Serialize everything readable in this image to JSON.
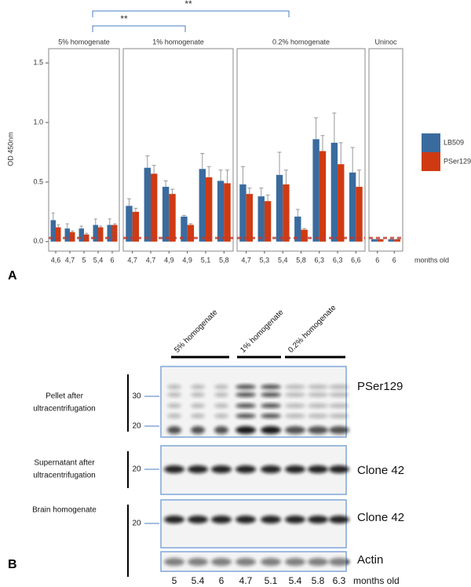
{
  "chart_data": {
    "type": "bar",
    "ylabel": "OD 450nm",
    "xlabel": "months old",
    "ylim": [
      -0.08,
      1.62
    ],
    "yticks": [
      {
        "value": 0,
        "label": "0.0"
      },
      {
        "value": 0.5,
        "label": "0.5"
      },
      {
        "value": 1,
        "label": "1.0"
      },
      {
        "value": 1.5,
        "label": "1.5"
      }
    ],
    "baseline": 0.03,
    "legend": [
      {
        "name": "LB509",
        "color": "#3a6b9e"
      },
      {
        "name": "PSer129",
        "color": "#d03a12"
      }
    ],
    "annotations": [
      "**",
      "**"
    ],
    "facets": [
      {
        "title": "5% homogenate",
        "categories": [
          "4,6",
          "4,7",
          "5",
          "5,4",
          "6"
        ],
        "series": [
          {
            "values": [
              0.18,
              0.11,
              0.11,
              0.14,
              0.14
            ],
            "errors": [
              0.06,
              0.04,
              0.02,
              0.05,
              0.05
            ]
          },
          {
            "values": [
              0.12,
              0.08,
              0.06,
              0.12,
              0.14
            ],
            "errors": [
              0.02,
              0.01,
              0.01,
              0.01,
              0.01
            ]
          }
        ]
      },
      {
        "title": "1% homogenate",
        "categories": [
          "4,7",
          "4,7",
          "4,9",
          "4,9",
          "5,1",
          "5,8"
        ],
        "series": [
          {
            "values": [
              0.3,
              0.62,
              0.46,
              0.21,
              0.61,
              0.51
            ],
            "errors": [
              0.06,
              0.1,
              0.05,
              0.01,
              0.13,
              0.09
            ]
          },
          {
            "values": [
              0.25,
              0.57,
              0.4,
              0.14,
              0.54,
              0.49
            ],
            "errors": [
              0.03,
              0.07,
              0.04,
              0.01,
              0.09,
              0.11
            ]
          }
        ]
      },
      {
        "title": "0.2% homogenate",
        "categories": [
          "4,7",
          "5,3",
          "5,4",
          "5,8",
          "6,3",
          "6,3",
          "6,6"
        ],
        "series": [
          {
            "values": [
              0.48,
              0.38,
              0.56,
              0.21,
              0.86,
              0.83,
              0.58
            ],
            "errors": [
              0.15,
              0.07,
              0.19,
              0.06,
              0.18,
              0.25,
              0.21
            ]
          },
          {
            "values": [
              0.4,
              0.34,
              0.48,
              0.1,
              0.76,
              0.65,
              0.46
            ],
            "errors": [
              0.05,
              0.05,
              0.12,
              0.01,
              0.13,
              0.18,
              0.14
            ]
          }
        ]
      },
      {
        "title": "Uninoc",
        "categories": [
          "6",
          "6"
        ],
        "series": [
          {
            "values": [
              0.02,
              0.02
            ],
            "errors": [
              0,
              0
            ]
          },
          {
            "values": [
              0.02,
              0.02
            ],
            "errors": [
              0,
              0
            ]
          }
        ]
      }
    ]
  },
  "panels": [
    "A",
    "B"
  ],
  "blot": {
    "headers": [
      "5% homogenate",
      "1% homogenate",
      "0.2% homogenate"
    ],
    "rows": [
      {
        "label": [
          "Pellet after",
          "ultracentrifugation"
        ],
        "markers": [
          30,
          20
        ],
        "antibodies": [
          "PSer129"
        ]
      },
      {
        "label": [
          "Supernatant after",
          "ultracentrifugation"
        ],
        "markers": [
          20
        ],
        "antibodies": [
          "Clone 42"
        ]
      },
      {
        "label": [
          "Brain homogenate"
        ],
        "markers": [
          20
        ],
        "antibodies": [
          "Clone 42",
          "Actin"
        ]
      }
    ],
    "lanes": [
      "5",
      "5.4",
      "6",
      "4.7",
      "5.1",
      "5.4",
      "5.8",
      "6.3"
    ],
    "xlabel": "months old"
  }
}
